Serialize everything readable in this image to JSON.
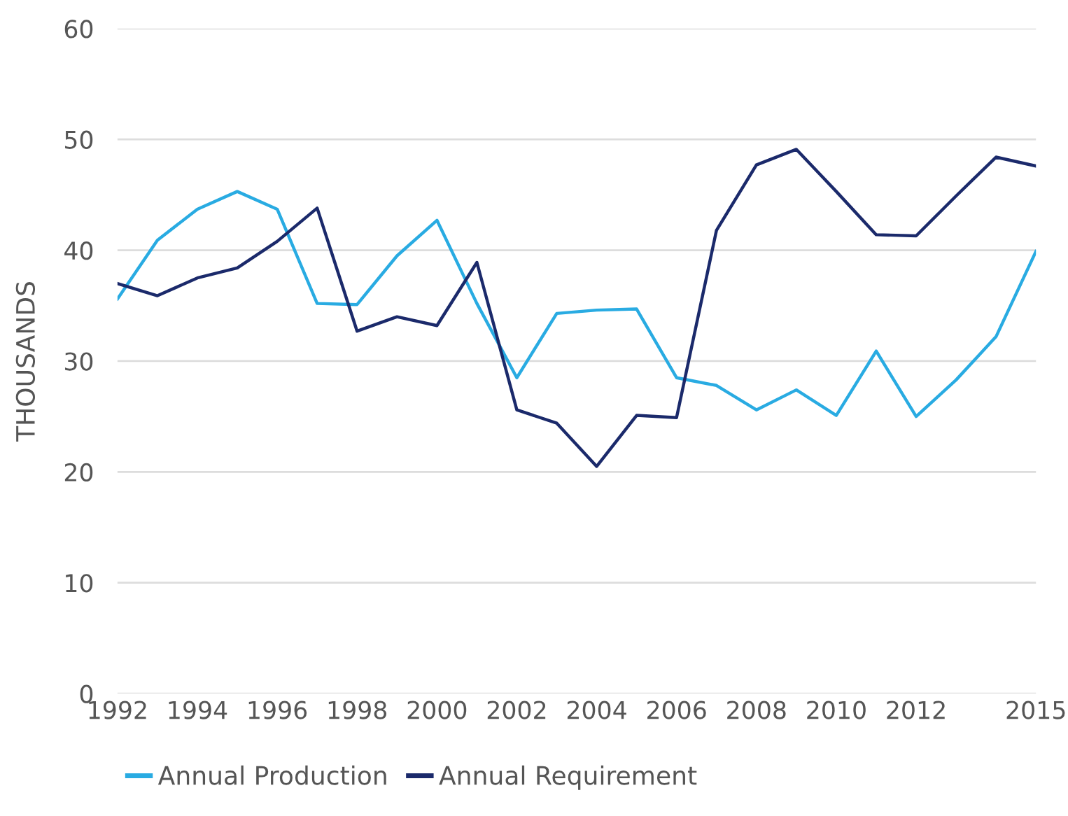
{
  "chart_data": {
    "type": "line",
    "ylabel": "THOUSANDS",
    "x": [
      1992,
      1993,
      1994,
      1995,
      1996,
      1997,
      1998,
      1999,
      2000,
      2001,
      2002,
      2003,
      2004,
      2005,
      2006,
      2007,
      2008,
      2009,
      2010,
      2011,
      2012,
      2013,
      2014,
      2015
    ],
    "series": [
      {
        "name": "Annual Production",
        "color": "#29abe2",
        "values": [
          35.6,
          40.9,
          43.7,
          45.3,
          43.7,
          35.2,
          35.1,
          39.5,
          42.7,
          35.2,
          28.5,
          34.3,
          34.6,
          34.7,
          28.5,
          27.8,
          25.6,
          27.4,
          25.1,
          30.9,
          25.0,
          28.3,
          32.2,
          39.9
        ]
      },
      {
        "name": "Annual Requirement",
        "color": "#1b2a6b",
        "values": [
          37.0,
          35.9,
          37.5,
          38.4,
          40.8,
          43.8,
          32.7,
          34.0,
          33.2,
          38.9,
          25.6,
          24.4,
          20.5,
          25.1,
          24.9,
          41.8,
          47.7,
          49.1,
          45.3,
          41.4,
          41.3,
          44.9,
          48.4,
          47.6
        ]
      }
    ],
    "xlim": [
      1992,
      2015
    ],
    "xticks": [
      1992,
      1994,
      1996,
      1998,
      2000,
      2002,
      2004,
      2006,
      2008,
      2010,
      2012,
      2015
    ],
    "ylim": [
      0,
      60
    ],
    "yticks": [
      0,
      10,
      20,
      30,
      40,
      50,
      60
    ],
    "grid": "y",
    "legend": "bottom left",
    "marker": "none",
    "line_style": "solid"
  }
}
